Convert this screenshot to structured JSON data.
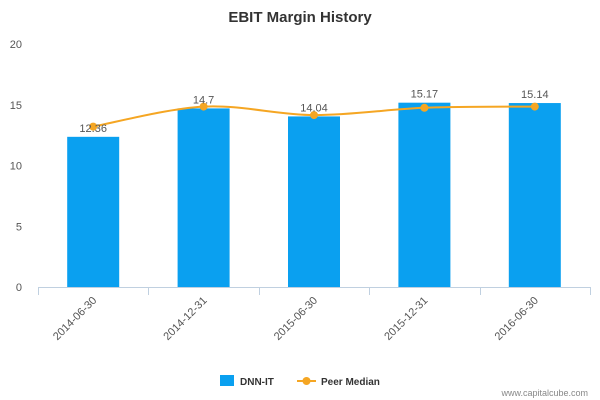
{
  "chart_data": {
    "type": "bar",
    "title": "EBIT Margin History",
    "categories": [
      "2014-06-30",
      "2014-12-31",
      "2015-06-30",
      "2015-12-31",
      "2016-06-30"
    ],
    "series": [
      {
        "name": "DNN-IT",
        "type": "bar",
        "values": [
          12.36,
          14.7,
          14.04,
          15.17,
          15.14
        ],
        "labels": [
          "12.36",
          "14.7",
          "14.04",
          "15.17",
          "15.14"
        ],
        "color": "#0aa0f0"
      },
      {
        "name": "Peer Median",
        "type": "line",
        "values": [
          13.2,
          14.85,
          14.15,
          14.75,
          14.85
        ],
        "color": "#f5a623"
      }
    ],
    "ylim": [
      0,
      20
    ],
    "yticks": [
      0,
      5,
      10,
      15,
      20
    ],
    "ytick_labels": [
      "0",
      "5",
      "10",
      "15",
      "20"
    ],
    "xlabel": "",
    "ylabel": "",
    "legend": "bottom-center"
  },
  "credit": "www.capitalcube.com",
  "colors": {
    "axis": "#c0d0e0",
    "text": "#333333"
  }
}
